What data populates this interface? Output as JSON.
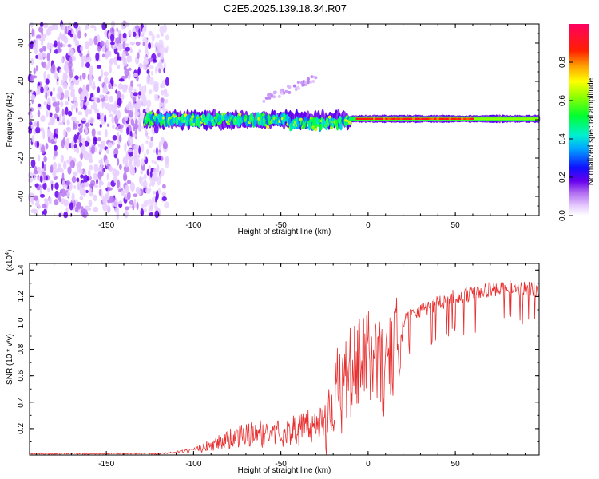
{
  "title": "C2E5.2025.139.18.34.R07",
  "chart_data": [
    {
      "type": "heatmap",
      "title": "C2E5.2025.139.18.34.R07",
      "xlabel": "Height of straight line (km)",
      "ylabel": "Frequency (Hz)",
      "xlim": [
        -194,
        98
      ],
      "ylim": [
        -50,
        50
      ],
      "xticks": [
        -150,
        -100,
        -50,
        0,
        50
      ],
      "yticks": [
        -40,
        -20,
        0,
        20,
        40
      ],
      "colorbar": {
        "label": "Normalized spectral amplitude",
        "range": [
          0.0,
          1.0
        ],
        "ticks": [
          0.0,
          0.2,
          0.4,
          0.6,
          0.8
        ]
      },
      "features": [
        {
          "name": "noise region",
          "x_range": [
            -194,
            -115
          ],
          "freq_range": [
            -50,
            50
          ],
          "amplitude": 0.15
        },
        {
          "name": "signal band",
          "x_range": [
            -128,
            98
          ],
          "freq_center": 0,
          "freq_halfwidth": 3,
          "amplitude": 0.55
        },
        {
          "name": "strong carrier",
          "x_range": [
            -7,
            98
          ],
          "freq_center": 0.5,
          "amplitude": 0.9
        },
        {
          "name": "upper sideband streak",
          "x_range": [
            -60,
            -30
          ],
          "freq_range": [
            10,
            22
          ],
          "amplitude": 0.1
        }
      ]
    },
    {
      "type": "line",
      "xlabel": "Height of straight line (km)",
      "ylabel": "SNR (10 * v/v)",
      "yscale_label": "(x10",
      "yscale_exp": "4",
      "yscale_close": ")",
      "xlim": [
        -194,
        98
      ],
      "ylim": [
        0.0,
        1.45
      ],
      "xticks": [
        -150,
        -100,
        -50,
        0,
        50
      ],
      "yticks": [
        0.2,
        0.4,
        0.6,
        0.8,
        1.0,
        1.2,
        1.4
      ],
      "series": [
        {
          "name": "SNR",
          "color": "#e83030",
          "x": [
            -194,
            -150,
            -120,
            -110,
            -100,
            -90,
            -80,
            -70,
            -60,
            -50,
            -40,
            -30,
            -25,
            -20,
            -15,
            -10,
            -5,
            0,
            5,
            10,
            15,
            20,
            25,
            30,
            40,
            50,
            60,
            70,
            80,
            90,
            98
          ],
          "values": [
            0.01,
            0.01,
            0.01,
            0.02,
            0.03,
            0.08,
            0.12,
            0.15,
            0.16,
            0.17,
            0.19,
            0.22,
            0.27,
            0.45,
            0.5,
            0.62,
            0.68,
            0.76,
            0.72,
            0.62,
            0.78,
            1.02,
            1.08,
            1.1,
            1.15,
            1.2,
            1.22,
            1.25,
            1.26,
            1.27,
            1.25
          ]
        }
      ]
    }
  ]
}
